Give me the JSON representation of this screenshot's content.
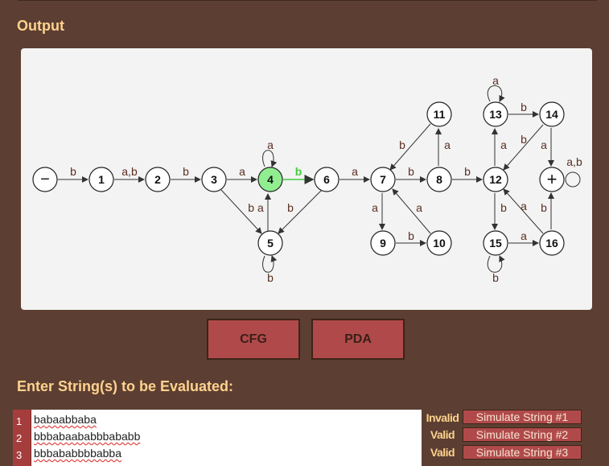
{
  "output_title": "Output",
  "enter_title": "Enter String(s) to be Evaluated:",
  "buttons": {
    "cfg": "CFG",
    "pda": "PDA"
  },
  "graph": {
    "active_state": "4",
    "active_color": "#90ee90",
    "highlight_color": "#3fcc3f",
    "states": [
      "−",
      "1",
      "2",
      "3",
      "4",
      "5",
      "6",
      "7",
      "8",
      "9",
      "10",
      "11",
      "12",
      "13",
      "14",
      "15",
      "16",
      "+"
    ],
    "transition_labels": [
      "b",
      "a,b",
      "b",
      "a",
      "a",
      "b",
      "b a",
      "b",
      "a",
      "b",
      "a",
      "b",
      "a",
      "b",
      "a",
      "b",
      "b",
      "a",
      "b",
      "b",
      "a",
      "a",
      "a",
      "b",
      "b",
      "a",
      "b",
      "a",
      "b",
      "a",
      "a,b"
    ]
  },
  "editor": {
    "lines": [
      {
        "num": "1",
        "text": "babaabbaba",
        "status": "Invalid",
        "button": "Simulate String #1"
      },
      {
        "num": "2",
        "text": "bbbabaababbbababb",
        "status": "Valid",
        "button": "Simulate String #2"
      },
      {
        "num": "3",
        "text": "bbbababbbbabba",
        "status": "Valid",
        "button": "Simulate String #3"
      }
    ]
  }
}
